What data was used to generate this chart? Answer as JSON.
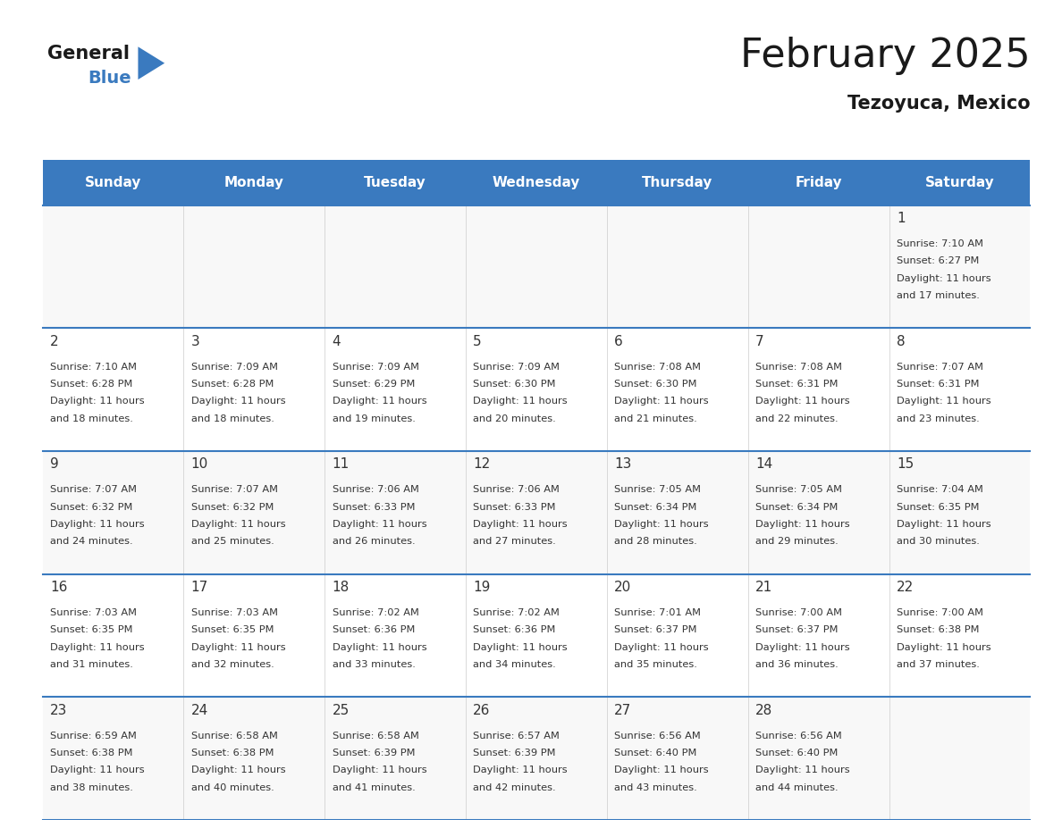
{
  "title": "February 2025",
  "subtitle": "Tezoyuca, Mexico",
  "header_bg": "#3a7abf",
  "header_text_color": "#ffffff",
  "cell_bg_light": "#f2f2f2",
  "cell_bg_white": "#ffffff",
  "day_text_color": "#333333",
  "info_text_color": "#333333",
  "line_color": "#3a7abf",
  "days_of_week": [
    "Sunday",
    "Monday",
    "Tuesday",
    "Wednesday",
    "Thursday",
    "Friday",
    "Saturday"
  ],
  "calendar": [
    [
      {
        "day": "",
        "info": ""
      },
      {
        "day": "",
        "info": ""
      },
      {
        "day": "",
        "info": ""
      },
      {
        "day": "",
        "info": ""
      },
      {
        "day": "",
        "info": ""
      },
      {
        "day": "",
        "info": ""
      },
      {
        "day": "1",
        "info": "Sunrise: 7:10 AM\nSunset: 6:27 PM\nDaylight: 11 hours\nand 17 minutes."
      }
    ],
    [
      {
        "day": "2",
        "info": "Sunrise: 7:10 AM\nSunset: 6:28 PM\nDaylight: 11 hours\nand 18 minutes."
      },
      {
        "day": "3",
        "info": "Sunrise: 7:09 AM\nSunset: 6:28 PM\nDaylight: 11 hours\nand 18 minutes."
      },
      {
        "day": "4",
        "info": "Sunrise: 7:09 AM\nSunset: 6:29 PM\nDaylight: 11 hours\nand 19 minutes."
      },
      {
        "day": "5",
        "info": "Sunrise: 7:09 AM\nSunset: 6:30 PM\nDaylight: 11 hours\nand 20 minutes."
      },
      {
        "day": "6",
        "info": "Sunrise: 7:08 AM\nSunset: 6:30 PM\nDaylight: 11 hours\nand 21 minutes."
      },
      {
        "day": "7",
        "info": "Sunrise: 7:08 AM\nSunset: 6:31 PM\nDaylight: 11 hours\nand 22 minutes."
      },
      {
        "day": "8",
        "info": "Sunrise: 7:07 AM\nSunset: 6:31 PM\nDaylight: 11 hours\nand 23 minutes."
      }
    ],
    [
      {
        "day": "9",
        "info": "Sunrise: 7:07 AM\nSunset: 6:32 PM\nDaylight: 11 hours\nand 24 minutes."
      },
      {
        "day": "10",
        "info": "Sunrise: 7:07 AM\nSunset: 6:32 PM\nDaylight: 11 hours\nand 25 minutes."
      },
      {
        "day": "11",
        "info": "Sunrise: 7:06 AM\nSunset: 6:33 PM\nDaylight: 11 hours\nand 26 minutes."
      },
      {
        "day": "12",
        "info": "Sunrise: 7:06 AM\nSunset: 6:33 PM\nDaylight: 11 hours\nand 27 minutes."
      },
      {
        "day": "13",
        "info": "Sunrise: 7:05 AM\nSunset: 6:34 PM\nDaylight: 11 hours\nand 28 minutes."
      },
      {
        "day": "14",
        "info": "Sunrise: 7:05 AM\nSunset: 6:34 PM\nDaylight: 11 hours\nand 29 minutes."
      },
      {
        "day": "15",
        "info": "Sunrise: 7:04 AM\nSunset: 6:35 PM\nDaylight: 11 hours\nand 30 minutes."
      }
    ],
    [
      {
        "day": "16",
        "info": "Sunrise: 7:03 AM\nSunset: 6:35 PM\nDaylight: 11 hours\nand 31 minutes."
      },
      {
        "day": "17",
        "info": "Sunrise: 7:03 AM\nSunset: 6:35 PM\nDaylight: 11 hours\nand 32 minutes."
      },
      {
        "day": "18",
        "info": "Sunrise: 7:02 AM\nSunset: 6:36 PM\nDaylight: 11 hours\nand 33 minutes."
      },
      {
        "day": "19",
        "info": "Sunrise: 7:02 AM\nSunset: 6:36 PM\nDaylight: 11 hours\nand 34 minutes."
      },
      {
        "day": "20",
        "info": "Sunrise: 7:01 AM\nSunset: 6:37 PM\nDaylight: 11 hours\nand 35 minutes."
      },
      {
        "day": "21",
        "info": "Sunrise: 7:00 AM\nSunset: 6:37 PM\nDaylight: 11 hours\nand 36 minutes."
      },
      {
        "day": "22",
        "info": "Sunrise: 7:00 AM\nSunset: 6:38 PM\nDaylight: 11 hours\nand 37 minutes."
      }
    ],
    [
      {
        "day": "23",
        "info": "Sunrise: 6:59 AM\nSunset: 6:38 PM\nDaylight: 11 hours\nand 38 minutes."
      },
      {
        "day": "24",
        "info": "Sunrise: 6:58 AM\nSunset: 6:38 PM\nDaylight: 11 hours\nand 40 minutes."
      },
      {
        "day": "25",
        "info": "Sunrise: 6:58 AM\nSunset: 6:39 PM\nDaylight: 11 hours\nand 41 minutes."
      },
      {
        "day": "26",
        "info": "Sunrise: 6:57 AM\nSunset: 6:39 PM\nDaylight: 11 hours\nand 42 minutes."
      },
      {
        "day": "27",
        "info": "Sunrise: 6:56 AM\nSunset: 6:40 PM\nDaylight: 11 hours\nand 43 minutes."
      },
      {
        "day": "28",
        "info": "Sunrise: 6:56 AM\nSunset: 6:40 PM\nDaylight: 11 hours\nand 44 minutes."
      },
      {
        "day": "",
        "info": ""
      }
    ]
  ]
}
